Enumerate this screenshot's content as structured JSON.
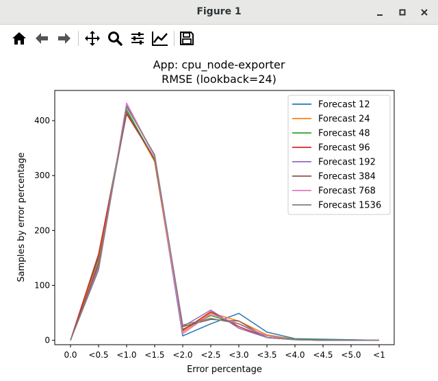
{
  "window": {
    "title": "Figure 1"
  },
  "toolbar": {
    "items": [
      {
        "icon": "home-icon"
      },
      {
        "icon": "back-arrow-icon"
      },
      {
        "icon": "forward-arrow-icon"
      },
      {
        "icon": "pan-move-icon"
      },
      {
        "icon": "zoom-magnifier-icon"
      },
      {
        "icon": "configure-subplots-icon"
      },
      {
        "icon": "edit-axis-icon"
      },
      {
        "icon": "save-floppy-icon"
      }
    ]
  },
  "chart_data": {
    "type": "line",
    "title": "App: cpu_node-exporter",
    "subtitle": "RMSE (lookback=24)",
    "xlabel": "Error percentage",
    "ylabel": "Samples by error percentage",
    "categories": [
      "0.0",
      "<0.5",
      "<1.0",
      "<1.5",
      "<2.0",
      "<2.5",
      "<3.0",
      "<3.5",
      "<4.0",
      "<4.5",
      "<5.0",
      "<1"
    ],
    "ylim": [
      -8,
      455
    ],
    "yticks": [
      0,
      100,
      200,
      300,
      400
    ],
    "grid": false,
    "legend_position": "top-right",
    "series": [
      {
        "name": "Forecast 12",
        "color": "#1f77b4",
        "values": [
          0,
          150,
          418,
          330,
          8,
          30,
          49,
          15,
          3,
          2,
          1,
          0
        ]
      },
      {
        "name": "Forecast 24",
        "color": "#ff7f0e",
        "values": [
          0,
          145,
          418,
          325,
          15,
          50,
          35,
          10,
          2,
          1,
          0,
          0
        ]
      },
      {
        "name": "Forecast 48",
        "color": "#2ca02c",
        "values": [
          0,
          155,
          420,
          328,
          20,
          45,
          30,
          8,
          2,
          1,
          0,
          0
        ]
      },
      {
        "name": "Forecast 96",
        "color": "#d62728",
        "values": [
          0,
          157,
          412,
          330,
          18,
          52,
          25,
          5,
          1,
          0,
          0,
          0
        ]
      },
      {
        "name": "Forecast 192",
        "color": "#9467bd",
        "values": [
          0,
          135,
          428,
          335,
          25,
          55,
          22,
          5,
          1,
          0,
          0,
          0
        ]
      },
      {
        "name": "Forecast 384",
        "color": "#8c564b",
        "values": [
          0,
          140,
          415,
          330,
          25,
          38,
          35,
          5,
          1,
          0,
          0,
          0
        ]
      },
      {
        "name": "Forecast 768",
        "color": "#e377c2",
        "values": [
          0,
          130,
          432,
          335,
          12,
          48,
          30,
          8,
          1,
          0,
          0,
          0
        ]
      },
      {
        "name": "Forecast 1536",
        "color": "#7f7f7f",
        "values": [
          0,
          128,
          425,
          338,
          28,
          40,
          30,
          5,
          1,
          0,
          0,
          0
        ]
      }
    ]
  }
}
